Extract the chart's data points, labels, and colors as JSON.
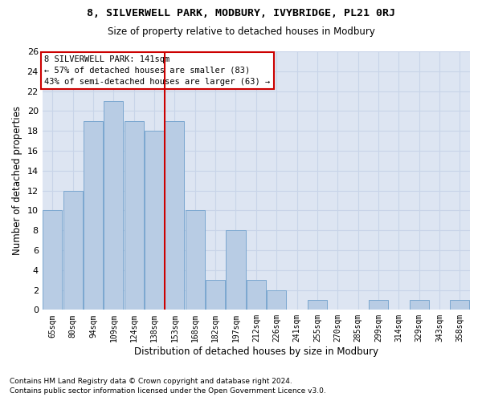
{
  "title": "8, SILVERWELL PARK, MODBURY, IVYBRIDGE, PL21 0RJ",
  "subtitle": "Size of property relative to detached houses in Modbury",
  "xlabel": "Distribution of detached houses by size in Modbury",
  "ylabel": "Number of detached properties",
  "categories": [
    "65sqm",
    "80sqm",
    "94sqm",
    "109sqm",
    "124sqm",
    "138sqm",
    "153sqm",
    "168sqm",
    "182sqm",
    "197sqm",
    "212sqm",
    "226sqm",
    "241sqm",
    "255sqm",
    "270sqm",
    "285sqm",
    "299sqm",
    "314sqm",
    "329sqm",
    "343sqm",
    "358sqm"
  ],
  "values": [
    10,
    12,
    19,
    21,
    19,
    18,
    19,
    10,
    3,
    8,
    3,
    2,
    0,
    1,
    0,
    0,
    1,
    0,
    1,
    0,
    1
  ],
  "bar_color": "#b8cce4",
  "bar_edge_color": "#7ba7d0",
  "grid_color": "#c8d4e8",
  "background_color": "#dde5f2",
  "vline_x": 5.5,
  "vline_color": "#cc0000",
  "annotation_title": "8 SILVERWELL PARK: 141sqm",
  "annotation_line2": "← 57% of detached houses are smaller (83)",
  "annotation_line3": "43% of semi-detached houses are larger (63) →",
  "annotation_box_edgecolor": "#cc0000",
  "ylim": [
    0,
    26
  ],
  "yticks": [
    0,
    2,
    4,
    6,
    8,
    10,
    12,
    14,
    16,
    18,
    20,
    22,
    24,
    26
  ],
  "footnote1": "Contains HM Land Registry data © Crown copyright and database right 2024.",
  "footnote2": "Contains public sector information licensed under the Open Government Licence v3.0."
}
